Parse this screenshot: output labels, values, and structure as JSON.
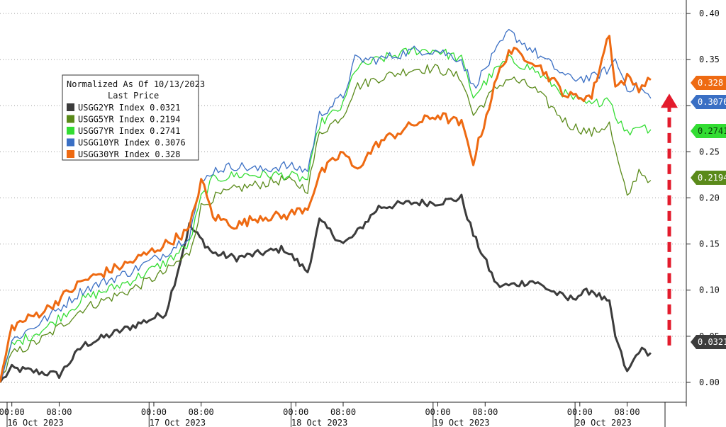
{
  "chart_data": {
    "type": "line",
    "legend": {
      "title": "Normalized As Of 10/13/2023",
      "subtitle": "Last Price",
      "placement": "top-left"
    },
    "y_axis": {
      "position": "right",
      "ylim": [
        -0.02,
        0.41
      ],
      "ticks": [
        0.0,
        0.05,
        0.1,
        0.15,
        0.2,
        0.25,
        0.3,
        0.35,
        0.4
      ],
      "tick_labels": [
        "0.00",
        "0.05",
        "0.10",
        "0.15",
        "0.20",
        "0.25",
        "0.30",
        "0.35",
        "0.40"
      ]
    },
    "x_axis": {
      "xlim": [
        "16 Oct 2023 -02:00",
        "20 Oct 2023 18:00"
      ],
      "time_labels": [
        "00:00",
        "08:00",
        "00:00",
        "08:00",
        "00:00",
        "08:00",
        "00:00",
        "08:00",
        "00:00",
        "08:00"
      ],
      "date_labels": [
        "16 Oct 2023",
        "17 Oct 2023",
        "18 Oct 2023",
        "19 Oct 2023",
        "20 Oct 2023"
      ]
    },
    "grid": true,
    "series": [
      {
        "name": "USGG2YR Index",
        "last": "0.0321",
        "color": "#3c3c3c",
        "x": [
          "16 Oct 2023 -02:00",
          "16 Oct 00:00",
          "16 Oct 06:00",
          "16 Oct 08:00",
          "16 Oct 12:00",
          "16 Oct 20:00",
          "17 Oct 02:00",
          "17 Oct 04:00",
          "17 Oct 06:00",
          "17 Oct 10:00",
          "17 Oct 14:00",
          "17 Oct 18:00",
          "17 Oct 22:00",
          "18 Oct 02:00",
          "18 Oct 04:00",
          "18 Oct 08:00",
          "18 Oct 10:00",
          "18 Oct 14:00",
          "18 Oct 20:00",
          "19 Oct 00:00",
          "19 Oct 04:00",
          "19 Oct 06:00",
          "19 Oct 10:00",
          "19 Oct 12:00",
          "19 Oct 16:00",
          "19 Oct 22:00",
          "20 Oct 02:00",
          "20 Oct 05:00",
          "20 Oct 06:00",
          "20 Oct 08:00",
          "20 Oct 10:00",
          "20 Oct 12:00"
        ],
        "values": [
          0.0,
          0.015,
          0.01,
          0.008,
          0.04,
          0.06,
          0.075,
          0.12,
          0.17,
          0.14,
          0.135,
          0.14,
          0.145,
          0.12,
          0.175,
          0.15,
          0.16,
          0.19,
          0.195,
          0.195,
          0.2,
          0.16,
          0.105,
          0.105,
          0.11,
          0.09,
          0.1,
          0.085,
          0.05,
          0.01,
          0.035,
          0.032
        ]
      },
      {
        "name": "USGG5YR Index",
        "last": "0.2194",
        "color": "#5a8a1a",
        "x": [
          "16 Oct 2023 -02:00",
          "16 Oct 00:00",
          "16 Oct 06:00",
          "16 Oct 12:00",
          "16 Oct 20:00",
          "17 Oct 02:00",
          "17 Oct 06:00",
          "17 Oct 08:00",
          "17 Oct 10:00",
          "17 Oct 14:00",
          "17 Oct 18:00",
          "17 Oct 22:00",
          "18 Oct 02:00",
          "18 Oct 04:00",
          "18 Oct 08:00",
          "18 Oct 10:00",
          "18 Oct 14:00",
          "18 Oct 20:00",
          "19 Oct 00:00",
          "19 Oct 04:00",
          "19 Oct 06:00",
          "19 Oct 10:00",
          "19 Oct 12:00",
          "19 Oct 16:00",
          "19 Oct 22:00",
          "20 Oct 02:00",
          "20 Oct 05:00",
          "20 Oct 06:00",
          "20 Oct 08:00",
          "20 Oct 10:00",
          "20 Oct 12:00"
        ],
        "values": [
          0.0,
          0.03,
          0.05,
          0.08,
          0.1,
          0.12,
          0.14,
          0.19,
          0.2,
          0.21,
          0.215,
          0.22,
          0.21,
          0.27,
          0.29,
          0.32,
          0.33,
          0.34,
          0.34,
          0.33,
          0.29,
          0.32,
          0.33,
          0.32,
          0.28,
          0.27,
          0.28,
          0.25,
          0.2,
          0.23,
          0.219
        ]
      },
      {
        "name": "USGG7YR Index",
        "last": "0.2741",
        "color": "#33dd33",
        "x": [
          "16 Oct 2023 -02:00",
          "16 Oct 00:00",
          "16 Oct 06:00",
          "16 Oct 12:00",
          "16 Oct 20:00",
          "17 Oct 02:00",
          "17 Oct 06:00",
          "17 Oct 08:00",
          "17 Oct 10:00",
          "17 Oct 14:00",
          "17 Oct 18:00",
          "17 Oct 22:00",
          "18 Oct 02:00",
          "18 Oct 04:00",
          "18 Oct 08:00",
          "18 Oct 10:00",
          "18 Oct 14:00",
          "18 Oct 20:00",
          "19 Oct 00:00",
          "19 Oct 04:00",
          "19 Oct 06:00",
          "19 Oct 10:00",
          "19 Oct 12:00",
          "19 Oct 16:00",
          "19 Oct 22:00",
          "20 Oct 02:00",
          "20 Oct 05:00",
          "20 Oct 06:00",
          "20 Oct 08:00",
          "20 Oct 10:00",
          "20 Oct 12:00"
        ],
        "values": [
          0.0,
          0.04,
          0.06,
          0.09,
          0.11,
          0.13,
          0.15,
          0.2,
          0.22,
          0.225,
          0.225,
          0.225,
          0.22,
          0.28,
          0.3,
          0.34,
          0.35,
          0.36,
          0.36,
          0.35,
          0.31,
          0.34,
          0.35,
          0.34,
          0.31,
          0.3,
          0.31,
          0.29,
          0.27,
          0.28,
          0.274
        ]
      },
      {
        "name": "USGG10YR Index",
        "last": "0.3076",
        "color": "#3a6fc4",
        "x": [
          "16 Oct 2023 -02:00",
          "16 Oct 00:00",
          "16 Oct 06:00",
          "16 Oct 12:00",
          "16 Oct 20:00",
          "17 Oct 02:00",
          "17 Oct 06:00",
          "17 Oct 08:00",
          "17 Oct 10:00",
          "17 Oct 14:00",
          "17 Oct 18:00",
          "17 Oct 22:00",
          "18 Oct 02:00",
          "18 Oct 04:00",
          "18 Oct 08:00",
          "18 Oct 10:00",
          "18 Oct 14:00",
          "18 Oct 20:00",
          "19 Oct 00:00",
          "19 Oct 04:00",
          "19 Oct 06:00",
          "19 Oct 10:00",
          "19 Oct 12:00",
          "19 Oct 16:00",
          "19 Oct 22:00",
          "20 Oct 02:00",
          "20 Oct 05:00",
          "20 Oct 06:00",
          "20 Oct 08:00",
          "20 Oct 10:00",
          "20 Oct 12:00"
        ],
        "values": [
          0.0,
          0.045,
          0.07,
          0.1,
          0.12,
          0.14,
          0.16,
          0.215,
          0.23,
          0.235,
          0.23,
          0.235,
          0.23,
          0.29,
          0.31,
          0.35,
          0.35,
          0.36,
          0.36,
          0.35,
          0.32,
          0.36,
          0.38,
          0.36,
          0.33,
          0.33,
          0.34,
          0.35,
          0.32,
          0.32,
          0.308
        ]
      },
      {
        "name": "USGG30YR Index",
        "last": "0.328",
        "color": "#ee6a12",
        "x": [
          "16 Oct 2023 -02:00",
          "16 Oct 00:00",
          "16 Oct 06:00",
          "16 Oct 12:00",
          "16 Oct 20:00",
          "17 Oct 02:00",
          "17 Oct 06:00",
          "17 Oct 08:00",
          "17 Oct 10:00",
          "17 Oct 14:00",
          "17 Oct 18:00",
          "17 Oct 22:00",
          "18 Oct 02:00",
          "18 Oct 04:00",
          "18 Oct 08:00",
          "18 Oct 10:00",
          "18 Oct 14:00",
          "18 Oct 20:00",
          "19 Oct 00:00",
          "19 Oct 04:00",
          "19 Oct 06:00",
          "19 Oct 10:00",
          "19 Oct 12:00",
          "19 Oct 16:00",
          "19 Oct 22:00",
          "20 Oct 02:00",
          "20 Oct 05:00",
          "20 Oct 06:00",
          "20 Oct 08:00",
          "20 Oct 10:00",
          "20 Oct 12:00"
        ],
        "values": [
          0.0,
          0.06,
          0.08,
          0.11,
          0.13,
          0.15,
          0.165,
          0.22,
          0.18,
          0.17,
          0.18,
          0.18,
          0.19,
          0.225,
          0.25,
          0.23,
          0.26,
          0.28,
          0.29,
          0.28,
          0.24,
          0.33,
          0.36,
          0.35,
          0.31,
          0.31,
          0.38,
          0.32,
          0.33,
          0.32,
          0.328
        ]
      }
    ],
    "annotations": [
      {
        "type": "arrow",
        "style": "dashed",
        "color": "#e31b2c",
        "from_value": 0.04,
        "to_value": 0.31
      }
    ]
  }
}
